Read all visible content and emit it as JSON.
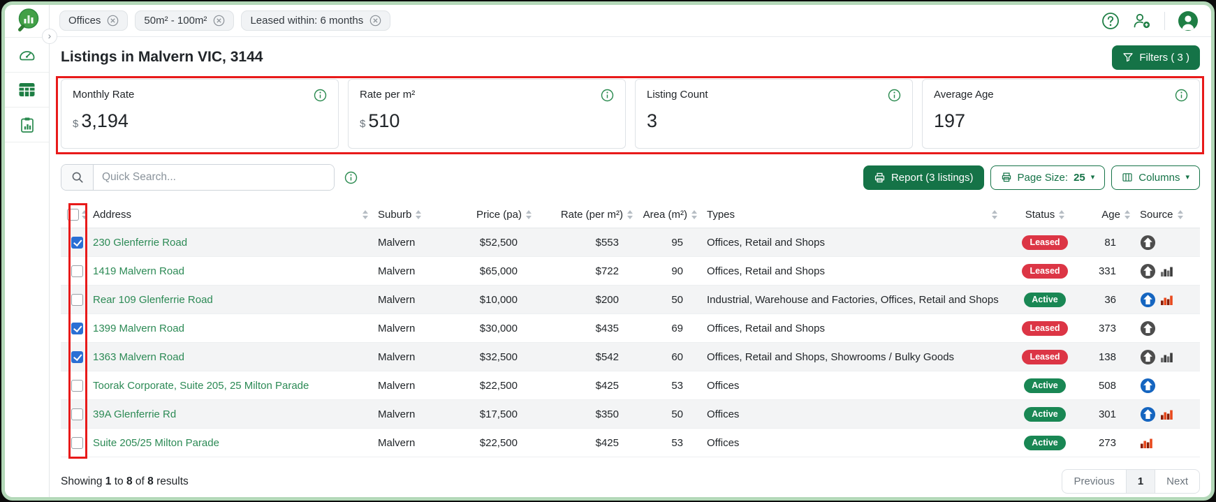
{
  "topbar": {
    "chips": [
      {
        "label": "Offices"
      },
      {
        "label": "50m² - 100m²"
      },
      {
        "label": "Leased within: 6 months"
      }
    ]
  },
  "header": {
    "title": "Listings in Malvern VIC, 3144",
    "filters_label": "Filters ( 3 )"
  },
  "stats": [
    {
      "label": "Monthly Rate",
      "prefix": "$",
      "value": "3,194"
    },
    {
      "label": "Rate per m²",
      "prefix": "$",
      "value": "510"
    },
    {
      "label": "Listing Count",
      "prefix": "",
      "value": "3"
    },
    {
      "label": "Average Age",
      "prefix": "",
      "value": "197"
    }
  ],
  "toolbar": {
    "search_placeholder": "Quick Search...",
    "report_label": "Report (3 listings)",
    "page_size_label": "Page Size:",
    "page_size_value": "25",
    "columns_label": "Columns"
  },
  "table": {
    "columns": [
      "Address",
      "Suburb",
      "Price (pa)",
      "Rate (per m²)",
      "Area (m²)",
      "Types",
      "Status",
      "Age",
      "Source"
    ],
    "rows": [
      {
        "checked": true,
        "address": "230 Glenferrie Road",
        "suburb": "Malvern",
        "price": "$52,500",
        "rate": "$553",
        "area": "95",
        "types": "Offices, Retail and Shops",
        "status": "Leased",
        "age": "81",
        "sources": [
          "house-gray"
        ]
      },
      {
        "checked": false,
        "address": "1419 Malvern Road",
        "suburb": "Malvern",
        "price": "$65,000",
        "rate": "$722",
        "area": "90",
        "types": "Offices, Retail and Shops",
        "status": "Leased",
        "age": "331",
        "sources": [
          "house-gray",
          "chart-dark"
        ]
      },
      {
        "checked": false,
        "address": "Rear 109 Glenferrie Road",
        "suburb": "Malvern",
        "price": "$10,000",
        "rate": "$200",
        "area": "50",
        "types": "Industrial, Warehouse and Factories, Offices, Retail and Shops",
        "status": "Active",
        "age": "36",
        "sources": [
          "house-blue",
          "chart-red"
        ]
      },
      {
        "checked": true,
        "address": "1399 Malvern Road",
        "suburb": "Malvern",
        "price": "$30,000",
        "rate": "$435",
        "area": "69",
        "types": "Offices, Retail and Shops",
        "status": "Leased",
        "age": "373",
        "sources": [
          "house-gray"
        ]
      },
      {
        "checked": true,
        "address": "1363 Malvern Road",
        "suburb": "Malvern",
        "price": "$32,500",
        "rate": "$542",
        "area": "60",
        "types": "Offices, Retail and Shops, Showrooms / Bulky Goods",
        "status": "Leased",
        "age": "138",
        "sources": [
          "house-gray",
          "chart-dark"
        ]
      },
      {
        "checked": false,
        "address": "Toorak Corporate, Suite 205, 25 Milton Parade",
        "suburb": "Malvern",
        "price": "$22,500",
        "rate": "$425",
        "area": "53",
        "types": "Offices",
        "status": "Active",
        "age": "508",
        "sources": [
          "house-blue"
        ]
      },
      {
        "checked": false,
        "address": "39A Glenferrie Rd",
        "suburb": "Malvern",
        "price": "$17,500",
        "rate": "$350",
        "area": "50",
        "types": "Offices",
        "status": "Active",
        "age": "301",
        "sources": [
          "house-blue",
          "chart-red"
        ]
      },
      {
        "checked": false,
        "address": "Suite 205/25 Milton Parade",
        "suburb": "Malvern",
        "price": "$22,500",
        "rate": "$425",
        "area": "53",
        "types": "Offices",
        "status": "Active",
        "age": "273",
        "sources": [
          "chart-red"
        ]
      }
    ]
  },
  "footer": {
    "showing_word": "Showing",
    "from": "1",
    "to_word": "to",
    "to": "8",
    "of_word": "of",
    "total": "8",
    "results_word": "results",
    "prev_label": "Previous",
    "page": "1",
    "next_label": "Next"
  },
  "icons": {
    "logo": "magnifier-buildings-logo",
    "sidebar": [
      "dashboard-gauge-icon",
      "table-grid-icon",
      "report-clipboard-icon"
    ],
    "topbar": [
      "help-icon",
      "add-user-icon",
      "avatar"
    ],
    "sources": {
      "house-gray": "house-source-inactive",
      "house-blue": "house-source-active",
      "chart-dark": "chart-source-inactive",
      "chart-red": "chart-source-active"
    }
  },
  "colors": {
    "brand_green": "#157347",
    "icon_green": "#2a8a4f",
    "link_green": "#2c8a55",
    "leased_red": "#dc3545",
    "active_green": "#198754",
    "checkbox_blue": "#2a6fd4",
    "annotation_red": "#e81a1a",
    "frame_green": "#b3d8b8",
    "source_house_inactive": "#4d4d4d",
    "source_house_active": "#1565c0",
    "source_chart_inactive_a": "#3c3c3c",
    "source_chart_inactive_b": "#6b6b6b",
    "source_chart_active_a": "#e8491d",
    "source_chart_active_b": "#8a1c00"
  }
}
